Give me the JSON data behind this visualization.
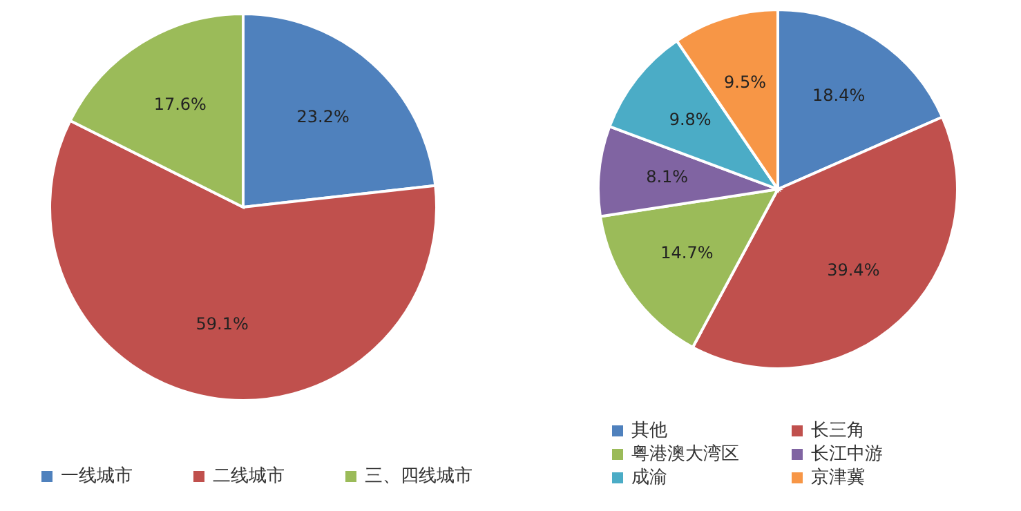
{
  "chart_data": [
    {
      "type": "pie",
      "categories": [
        "一线城市",
        "二线城市",
        "三、四线城市"
      ],
      "values": [
        23.2,
        59.1,
        17.6
      ],
      "value_labels": [
        "23.2%",
        "59.1%",
        "17.6%"
      ],
      "colors": [
        "#4f81bd",
        "#c0504d",
        "#9bbb59"
      ],
      "legend": "bottom"
    },
    {
      "type": "pie",
      "categories": [
        "其他",
        "长三角",
        "粤港澳大湾区",
        "长江中游",
        "成渝",
        "京津冀"
      ],
      "values": [
        18.4,
        39.4,
        14.7,
        8.1,
        9.8,
        9.5
      ],
      "value_labels": [
        "18.4%",
        "39.4%",
        "14.7%",
        "8.1%",
        "9.8%",
        "9.5%"
      ],
      "colors": [
        "#4f81bd",
        "#c0504d",
        "#9bbb59",
        "#8064a2",
        "#4bacc6",
        "#f79646"
      ],
      "legend": "bottom"
    }
  ]
}
